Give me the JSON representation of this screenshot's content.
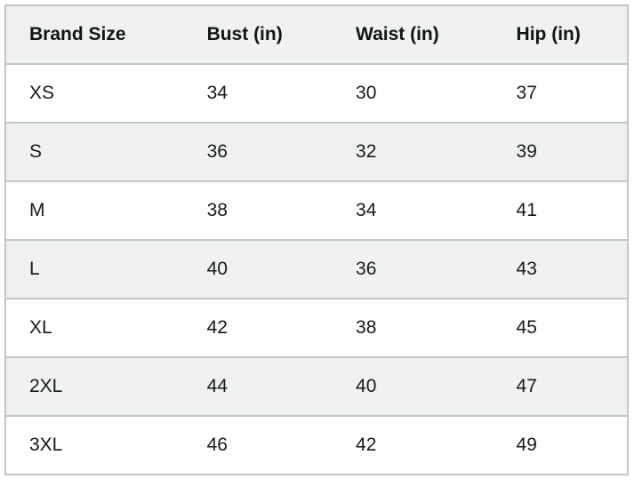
{
  "size_chart": {
    "columns": [
      "Brand Size",
      "Bust (in)",
      "Waist (in)",
      "Hip (in)"
    ],
    "rows": [
      {
        "size": "XS",
        "bust": "34",
        "waist": "30",
        "hip": "37"
      },
      {
        "size": "S",
        "bust": "36",
        "waist": "32",
        "hip": "39"
      },
      {
        "size": "M",
        "bust": "38",
        "waist": "34",
        "hip": "41"
      },
      {
        "size": "L",
        "bust": "40",
        "waist": "36",
        "hip": "43"
      },
      {
        "size": "XL",
        "bust": "42",
        "waist": "38",
        "hip": "45"
      },
      {
        "size": "2XL",
        "bust": "44",
        "waist": "40",
        "hip": "47"
      },
      {
        "size": "3XL",
        "bust": "46",
        "waist": "42",
        "hip": "49"
      }
    ],
    "colors": {
      "header_and_alt_row_bg": "#f0f1f1",
      "row_bg": "#ffffff",
      "border": "#c3c7c7",
      "text": "#16191a"
    }
  }
}
